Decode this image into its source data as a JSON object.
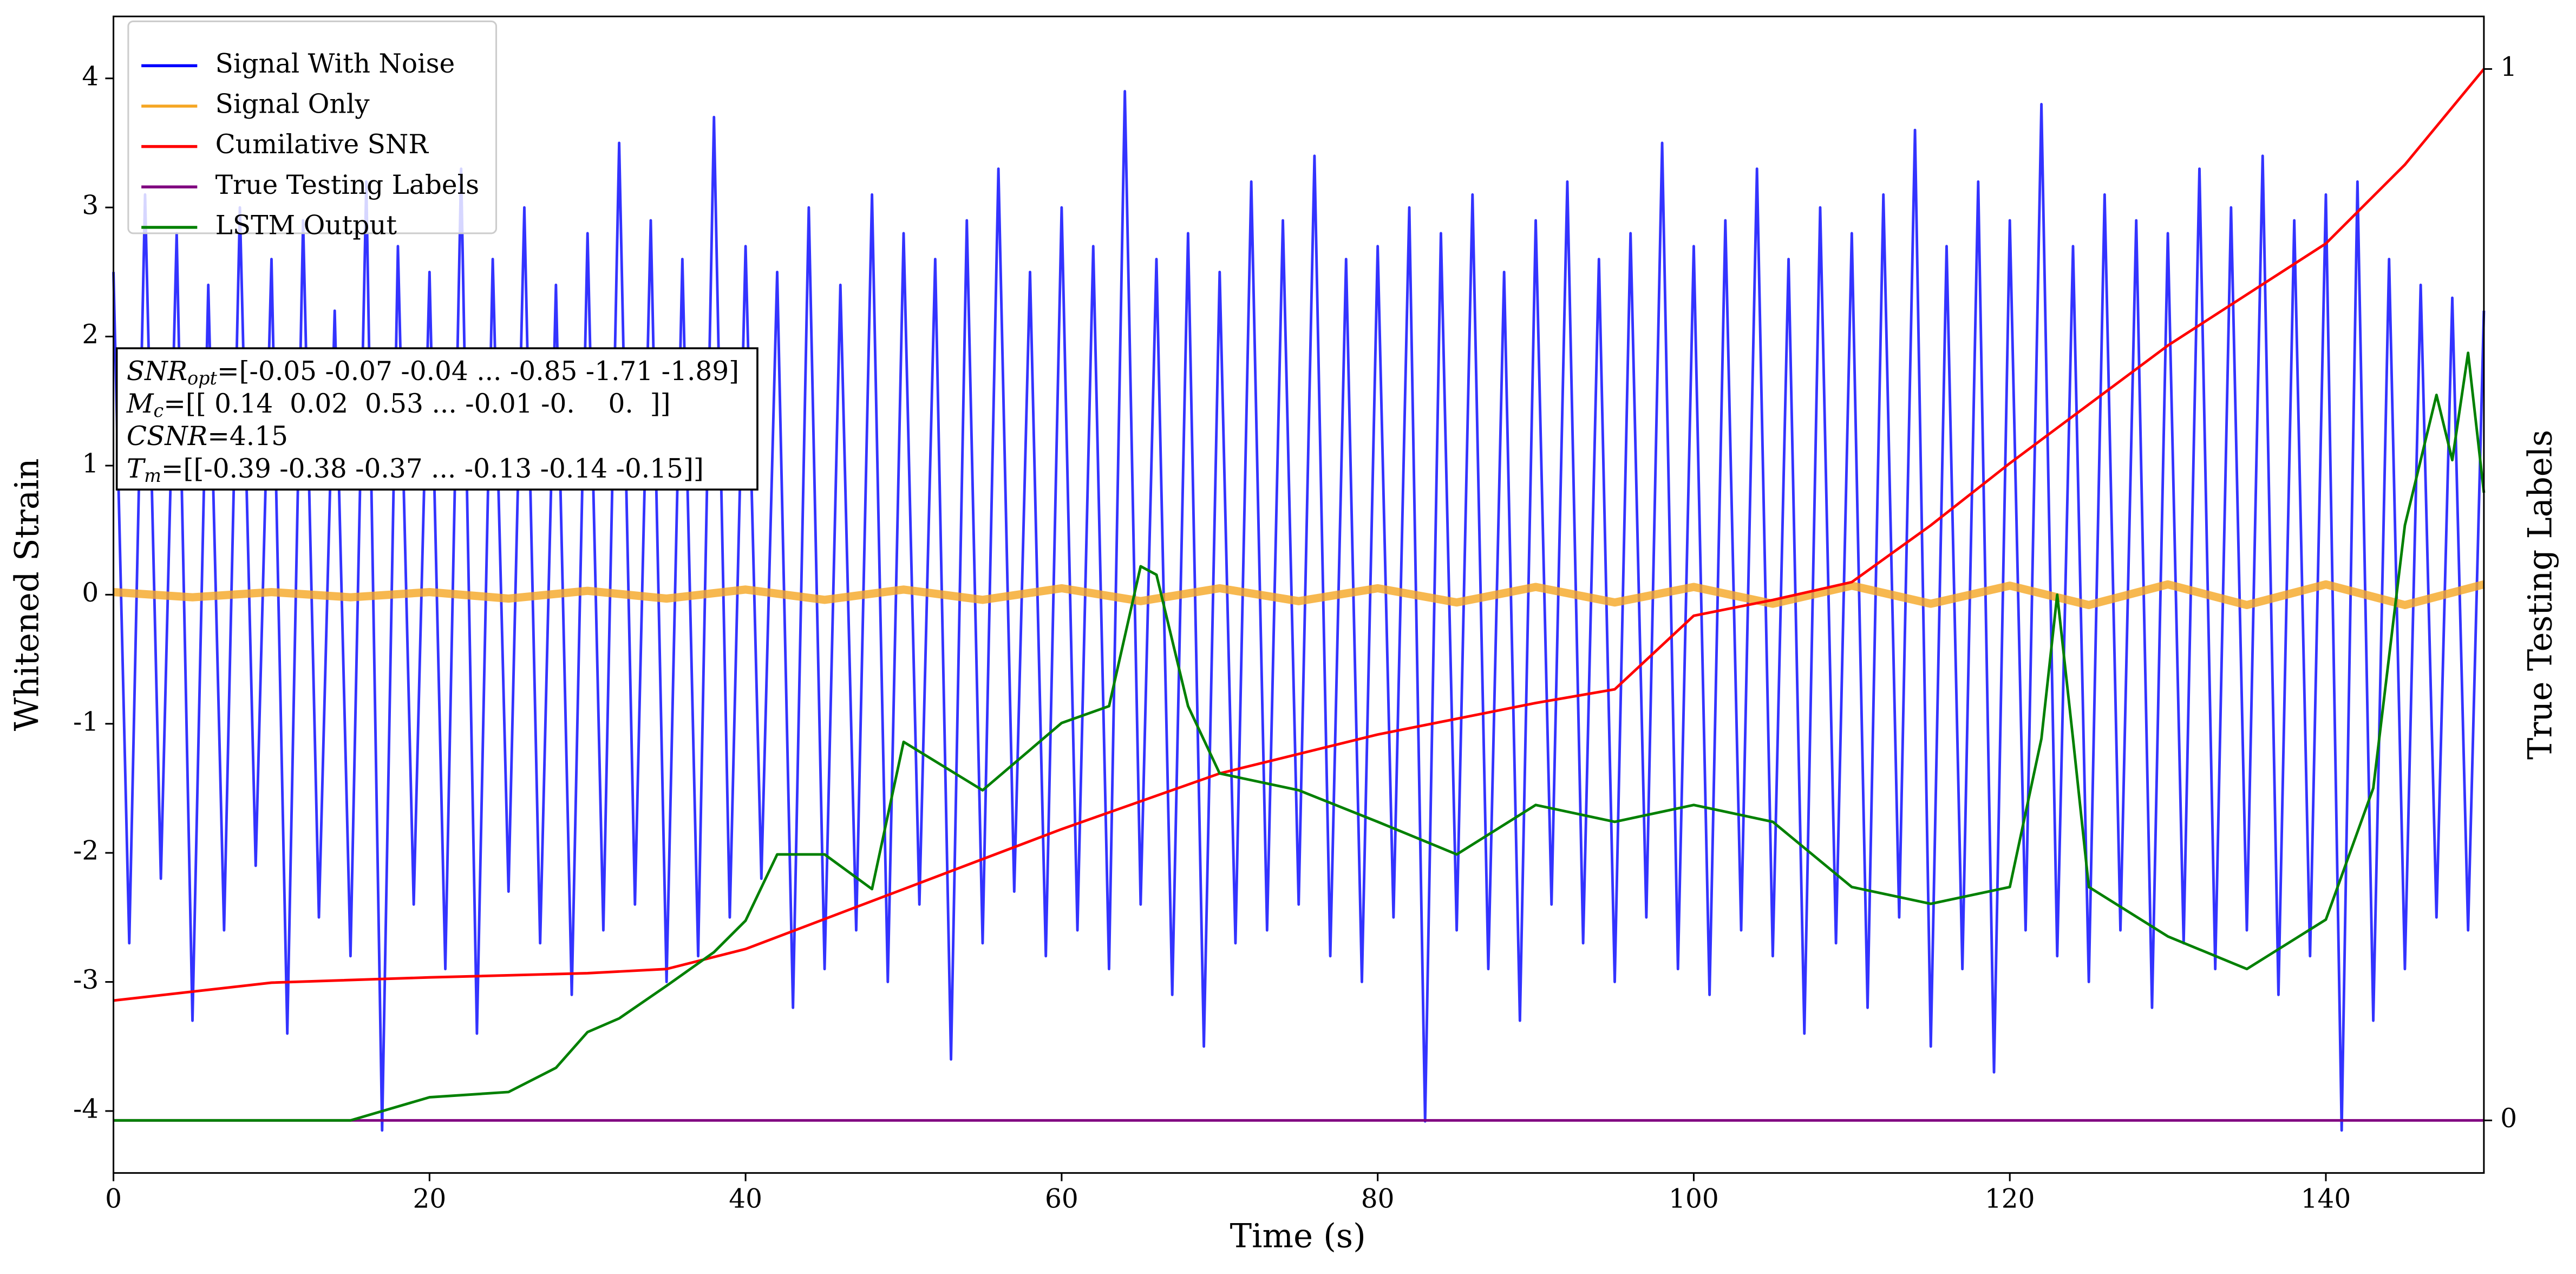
{
  "chart_data": {
    "type": "line",
    "xlabel": "Time (s)",
    "ylabel": "Whitened Strain",
    "y2label": "True Testing Labels",
    "xlim": [
      0,
      150
    ],
    "xticks": [
      0,
      20,
      40,
      60,
      80,
      100,
      120,
      140
    ],
    "ylim": [
      -4.48,
      4.48
    ],
    "yticks": [
      -4,
      -3,
      -2,
      -1,
      0,
      1,
      2,
      3,
      4
    ],
    "y2lim": [
      -0.05,
      1.05
    ],
    "y2ticks": [
      0,
      1
    ],
    "legend": "upper left",
    "annotation": [
      {
        "symbol": "SNR",
        "sub": "opt",
        "text": "=[-0.05 -0.07 -0.04 ... -0.85 -1.71 -1.89]"
      },
      {
        "symbol": "M",
        "sub": "c",
        "text": "=[[ 0.14  0.02  0.53 ... -0.01 -0.    0.  ]]"
      },
      {
        "symbol": "CSNR",
        "sub": null,
        "text": "=4.15"
      },
      {
        "symbol": "T",
        "sub": "m",
        "text": "=[[-0.39 -0.38 -0.37 ... -0.13 -0.14 -0.15]]"
      }
    ],
    "series": [
      {
        "name": "Signal With Noise",
        "color": "#0000ff",
        "axis": "y",
        "x": [
          0,
          1,
          2,
          3,
          4,
          5,
          6,
          7,
          8,
          9,
          10,
          11,
          12,
          13,
          14,
          15,
          16,
          17,
          18,
          19,
          20,
          21,
          22,
          23,
          24,
          25,
          26,
          27,
          28,
          29,
          30,
          31,
          32,
          33,
          34,
          35,
          36,
          37,
          38,
          39,
          40,
          41,
          42,
          43,
          44,
          45,
          46,
          47,
          48,
          49,
          50,
          51,
          52,
          53,
          54,
          55,
          56,
          57,
          58,
          59,
          60,
          61,
          62,
          63,
          64,
          65,
          66,
          67,
          68,
          69,
          70,
          71,
          72,
          73,
          74,
          75,
          76,
          77,
          78,
          79,
          80,
          81,
          82,
          83,
          84,
          85,
          86,
          87,
          88,
          89,
          90,
          91,
          92,
          93,
          94,
          95,
          96,
          97,
          98,
          99,
          100,
          101,
          102,
          103,
          104,
          105,
          106,
          107,
          108,
          109,
          110,
          111,
          112,
          113,
          114,
          115,
          116,
          117,
          118,
          119,
          120,
          121,
          122,
          123,
          124,
          125,
          126,
          127,
          128,
          129,
          130,
          131,
          132,
          133,
          134,
          135,
          136,
          137,
          138,
          139,
          140,
          141,
          142,
          143,
          144,
          145,
          146,
          147,
          148,
          149,
          150
        ],
        "values": [
          2.5,
          -2.7,
          3.1,
          -2.2,
          2.8,
          -3.3,
          2.4,
          -2.6,
          3.0,
          -2.1,
          2.6,
          -3.4,
          2.9,
          -2.5,
          2.2,
          -2.8,
          3.2,
          -4.15,
          2.7,
          -2.4,
          2.5,
          -2.9,
          3.3,
          -3.4,
          2.6,
          -2.3,
          3.0,
          -2.7,
          2.4,
          -3.1,
          2.8,
          -2.6,
          3.5,
          -2.4,
          2.9,
          -3.0,
          2.6,
          -2.8,
          3.7,
          -2.5,
          2.7,
          -2.2,
          2.5,
          -3.2,
          3.0,
          -2.9,
          2.4,
          -2.6,
          3.1,
          -3.0,
          2.8,
          -2.4,
          2.6,
          -3.6,
          2.9,
          -2.7,
          3.3,
          -2.3,
          2.5,
          -2.8,
          3.0,
          -2.6,
          2.7,
          -2.9,
          3.9,
          -2.4,
          2.6,
          -3.1,
          2.8,
          -3.5,
          2.5,
          -2.7,
          3.2,
          -2.6,
          2.9,
          -2.4,
          3.4,
          -2.8,
          2.6,
          -3.0,
          2.7,
          -2.5,
          3.0,
          -4.08,
          2.8,
          -2.6,
          3.1,
          -2.9,
          2.5,
          -3.3,
          2.9,
          -2.4,
          3.2,
          -2.7,
          2.6,
          -3.0,
          2.8,
          -2.5,
          3.5,
          -2.9,
          2.7,
          -3.1,
          2.9,
          -2.6,
          3.3,
          -2.8,
          2.6,
          -3.4,
          3.0,
          -2.7,
          2.8,
          -3.2,
          3.1,
          -2.5,
          3.6,
          -3.5,
          2.7,
          -2.9,
          3.2,
          -3.7,
          2.9,
          -2.6,
          3.8,
          -2.8,
          2.7,
          -3.0,
          3.1,
          -2.6,
          2.9,
          -3.2,
          2.8,
          -2.7,
          3.3,
          -2.9,
          3.0,
          -2.6,
          3.4,
          -3.1,
          2.9,
          -2.8,
          3.1,
          -4.15,
          3.2,
          -3.3,
          2.6,
          -2.9,
          2.4,
          -2.5,
          2.3,
          -2.6,
          2.2
        ]
      },
      {
        "name": "Signal Only",
        "color": "#f5a623",
        "axis": "y",
        "x": [
          0,
          5,
          10,
          15,
          20,
          25,
          30,
          35,
          40,
          45,
          50,
          55,
          60,
          65,
          70,
          75,
          80,
          85,
          90,
          95,
          100,
          105,
          110,
          115,
          120,
          125,
          130,
          135,
          140,
          145,
          150
        ],
        "values": [
          0.02,
          -0.02,
          0.02,
          -0.02,
          0.02,
          -0.03,
          0.03,
          -0.03,
          0.04,
          -0.04,
          0.04,
          -0.04,
          0.05,
          -0.05,
          0.05,
          -0.05,
          0.05,
          -0.06,
          0.06,
          -0.06,
          0.06,
          -0.07,
          0.07,
          -0.07,
          0.07,
          -0.08,
          0.08,
          -0.08,
          0.08,
          -0.08,
          0.08
        ]
      },
      {
        "name": "Cumilative SNR",
        "color": "#ff0000",
        "axis": "y2",
        "x": [
          0,
          10,
          20,
          30,
          35,
          40,
          50,
          60,
          70,
          80,
          90,
          95,
          100,
          105,
          110,
          115,
          120,
          130,
          140,
          145,
          150
        ],
        "values": [
          0.114,
          0.131,
          0.136,
          0.14,
          0.144,
          0.163,
          0.22,
          0.277,
          0.33,
          0.367,
          0.397,
          0.41,
          0.48,
          0.495,
          0.512,
          0.566,
          0.625,
          0.737,
          0.834,
          0.909,
          1.0
        ]
      },
      {
        "name": "True Testing Labels",
        "color": "#800080",
        "axis": "y2",
        "x": [
          0,
          150
        ],
        "values": [
          0,
          0
        ]
      },
      {
        "name": "LSTM Output",
        "color": "#008000",
        "axis": "y2",
        "x": [
          0,
          15,
          20,
          25,
          28,
          30,
          32,
          35,
          38,
          40,
          42,
          45,
          48,
          50,
          55,
          60,
          63,
          65,
          66,
          68,
          70,
          75,
          80,
          85,
          90,
          95,
          100,
          105,
          110,
          115,
          120,
          122,
          123,
          124,
          125,
          130,
          135,
          140,
          143,
          145,
          146,
          147,
          148,
          149,
          150
        ],
        "values": [
          0,
          0,
          0.022,
          0.027,
          0.05,
          0.084,
          0.097,
          0.128,
          0.16,
          0.19,
          0.253,
          0.253,
          0.22,
          0.36,
          0.314,
          0.378,
          0.394,
          0.527,
          0.519,
          0.394,
          0.33,
          0.314,
          0.284,
          0.253,
          0.3,
          0.284,
          0.3,
          0.284,
          0.222,
          0.206,
          0.222,
          0.363,
          0.5,
          0.363,
          0.222,
          0.175,
          0.144,
          0.191,
          0.316,
          0.566,
          0.628,
          0.69,
          0.628,
          0.73,
          0.597
        ]
      }
    ]
  }
}
